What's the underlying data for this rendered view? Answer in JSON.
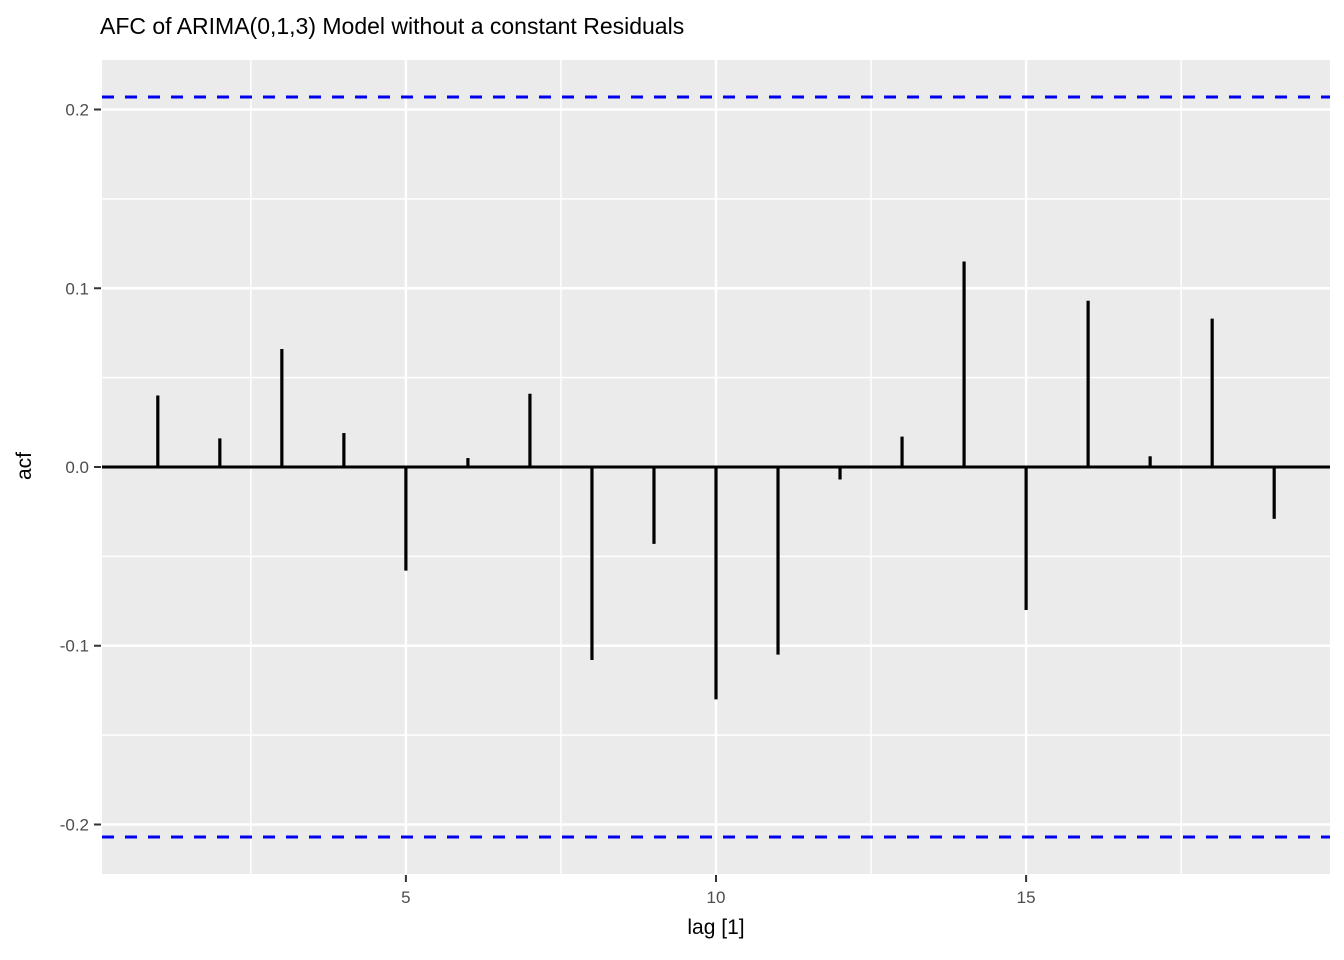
{
  "chart_data": {
    "type": "bar",
    "subtype": "acf-vertical-segments",
    "title": "AFC of ARIMA(0,1,3) Model without a constant Residuals",
    "xlabel": "lag [1]",
    "ylabel": "acf",
    "x": [
      1,
      2,
      3,
      4,
      5,
      6,
      7,
      8,
      9,
      10,
      11,
      12,
      13,
      14,
      15,
      16,
      17,
      18,
      19
    ],
    "values": [
      0.04,
      0.016,
      0.066,
      0.019,
      -0.058,
      0.005,
      0.041,
      -0.108,
      -0.043,
      -0.13,
      -0.105,
      -0.007,
      0.017,
      0.115,
      -0.08,
      0.093,
      0.006,
      0.083,
      -0.029
    ],
    "ci_upper": 0.207,
    "ci_lower": -0.207,
    "xlim": [
      0.1,
      19.9
    ],
    "ylim": [
      -0.2277,
      0.2277
    ],
    "x_major_ticks": [
      5,
      10,
      15
    ],
    "x_major_labels": [
      "5",
      "10",
      "15"
    ],
    "x_minor_ticks": [
      2.5,
      7.5,
      12.5,
      17.5
    ],
    "y_major_ticks": [
      0.2,
      0.1,
      0.0,
      -0.1,
      -0.2
    ],
    "y_major_labels": [
      "0.2",
      "0.1",
      "0.0",
      "-0.1",
      "-0.2"
    ],
    "y_minor_ticks": [
      0.15,
      0.05,
      -0.05,
      -0.15
    ],
    "grid": true,
    "legend": "none",
    "colors": {
      "panel_background": "#EBEBEB",
      "grid_major": "#FFFFFF",
      "grid_minor": "#FFFFFF",
      "bar": "#000000",
      "zero_line": "#000000",
      "ci_line": "#0000EE",
      "tick_label": "#4D4D4D",
      "tick_mark": "#333333",
      "title_text": "#000000"
    }
  }
}
